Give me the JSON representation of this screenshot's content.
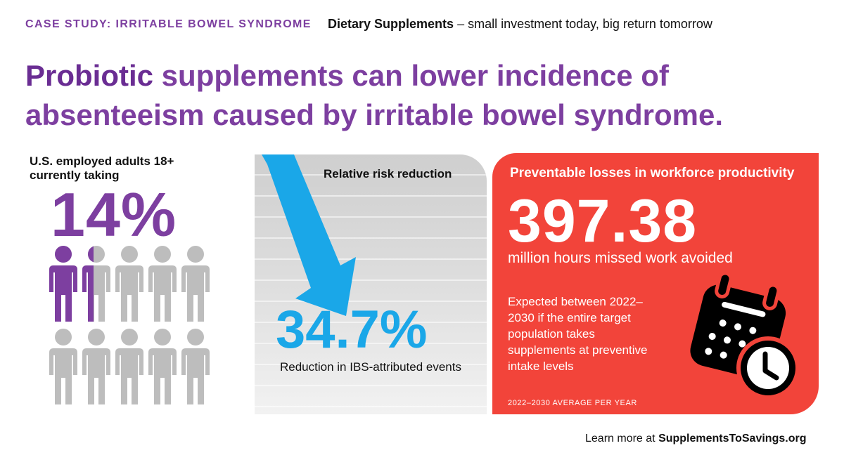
{
  "header": {
    "case_label": "CASE STUDY: IRRITABLE BOWEL SYNDROME",
    "tag_strong": "Dietary Supplements",
    "tag_rest": " – small investment today, big return tomorrow"
  },
  "headline": {
    "highlight": "Probiotic",
    "rest": " supplements can lower incidence of absenteeism caused by irritable bowel syndrome."
  },
  "left_stat": {
    "label": "U.S. employed adults 18+ currently taking",
    "value": "14%",
    "people_fraction": 0.14,
    "people_total": 10
  },
  "middle_stat": {
    "title": "Relative risk reduction",
    "value": "34.7%",
    "caption": "Reduction in IBS-attributed events"
  },
  "right_stat": {
    "title": "Preventable losses in workforce productivity",
    "value": "397.38",
    "unit": "million hours missed work avoided",
    "note": "Expected between 2022–2030 if the entire target population takes supplements at preventive intake levels",
    "footnote": "2022–2030 AVERAGE PER YEAR"
  },
  "footer": {
    "prefix": "Learn more at ",
    "site": "SupplementsToSavings.org"
  },
  "colors": {
    "purple": "#7d3fa0",
    "blue": "#1aa7e8",
    "red": "#f2443a",
    "person_gray": "#bdbdbd"
  },
  "icons": {
    "arrow": "down-arrow-icon",
    "calendar": "calendar-clock-icon",
    "person": "person-icon"
  }
}
